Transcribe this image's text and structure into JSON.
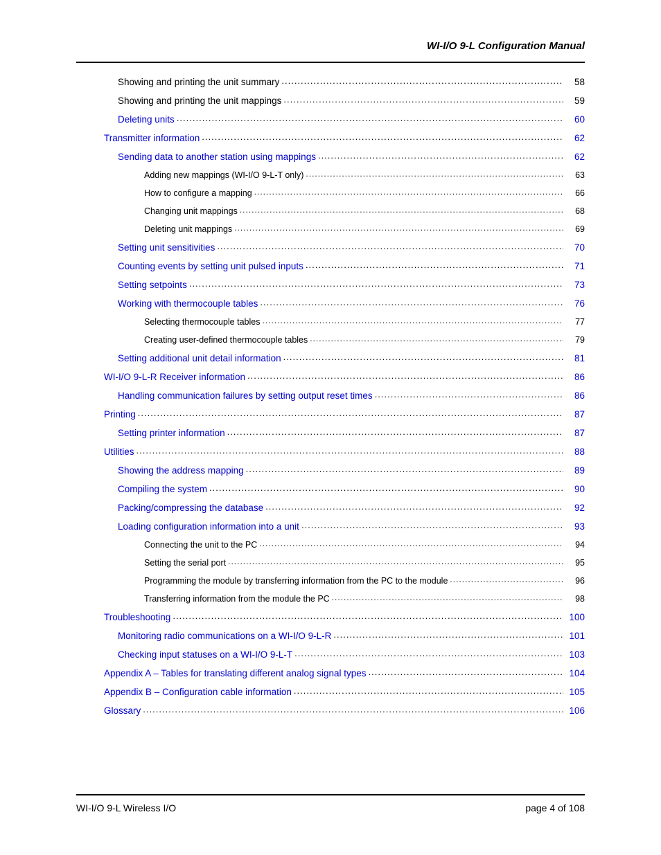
{
  "header": {
    "title": "WI-I/O 9-L Configuration Manual"
  },
  "colors": {
    "link": "#0000cc",
    "text": "#000000",
    "rule": "#000000",
    "background": "#ffffff"
  },
  "toc": [
    {
      "level": 1,
      "label": "Showing and printing the unit summary",
      "page": "58",
      "is_link": false
    },
    {
      "level": 1,
      "label": "Showing and printing the unit mappings",
      "page": "59",
      "is_link": false
    },
    {
      "level": 1,
      "label": "Deleting units",
      "page": "60",
      "is_link": true
    },
    {
      "level": 0,
      "label": "Transmitter information",
      "page": "62",
      "is_link": true
    },
    {
      "level": 1,
      "label": "Sending data to another station using mappings",
      "page": "62",
      "is_link": true
    },
    {
      "level": 2,
      "label": "Adding new mappings (WI-I/O 9-L-T only)",
      "page": "63",
      "is_link": false
    },
    {
      "level": 2,
      "label": "How to configure a mapping",
      "page": "66",
      "is_link": false
    },
    {
      "level": 2,
      "label": "Changing unit mappings",
      "page": "68",
      "is_link": false
    },
    {
      "level": 2,
      "label": "Deleting unit mappings",
      "page": "69",
      "is_link": false
    },
    {
      "level": 1,
      "label": "Setting unit sensitivities",
      "page": "70",
      "is_link": true
    },
    {
      "level": 1,
      "label": "Counting events by setting unit pulsed inputs",
      "page": "71",
      "is_link": true
    },
    {
      "level": 1,
      "label": "Setting setpoints",
      "page": "73",
      "is_link": true
    },
    {
      "level": 1,
      "label": "Working with thermocouple tables",
      "page": "76",
      "is_link": true
    },
    {
      "level": 2,
      "label": "Selecting thermocouple tables",
      "page": "77",
      "is_link": false
    },
    {
      "level": 2,
      "label": "Creating user-defined thermocouple tables",
      "page": "79",
      "is_link": false
    },
    {
      "level": 1,
      "label": "Setting additional unit detail information",
      "page": "81",
      "is_link": true
    },
    {
      "level": 0,
      "label": "WI-I/O 9-L-R Receiver information",
      "page": "86",
      "is_link": true
    },
    {
      "level": 1,
      "label": "Handling communication failures by setting output reset times",
      "page": "86",
      "is_link": true
    },
    {
      "level": 0,
      "label": "Printing",
      "page": "87",
      "is_link": true
    },
    {
      "level": 1,
      "label": "Setting printer information",
      "page": "87",
      "is_link": true
    },
    {
      "level": 0,
      "label": "Utilities",
      "page": "88",
      "is_link": true
    },
    {
      "level": 1,
      "label": "Showing the address mapping",
      "page": "89",
      "is_link": true
    },
    {
      "level": 1,
      "label": "Compiling the system",
      "page": "90",
      "is_link": true
    },
    {
      "level": 1,
      "label": "Packing/compressing the database",
      "page": "92",
      "is_link": true
    },
    {
      "level": 1,
      "label": "Loading configuration information into a unit",
      "page": "93",
      "is_link": true
    },
    {
      "level": 2,
      "label": "Connecting the unit to the PC",
      "page": "94",
      "is_link": false
    },
    {
      "level": 2,
      "label": "Setting the serial port",
      "page": "95",
      "is_link": false
    },
    {
      "level": 2,
      "label": "Programming the module by transferring information from the PC to the module",
      "page": "96",
      "is_link": false
    },
    {
      "level": 2,
      "label": "Transferring information from the module the PC",
      "page": "98",
      "is_link": false
    },
    {
      "level": 0,
      "label": "Troubleshooting",
      "page": "100",
      "is_link": true
    },
    {
      "level": 1,
      "label": "Monitoring radio communications on a WI-I/O 9-L-R",
      "page": "101",
      "is_link": true
    },
    {
      "level": 1,
      "label": "Checking input statuses on a WI-I/O 9-L-T",
      "page": "103",
      "is_link": true
    },
    {
      "level": 0,
      "label": "Appendix A – Tables for translating different analog signal types",
      "page": "104",
      "is_link": true
    },
    {
      "level": 0,
      "label": "Appendix B – Configuration cable information",
      "page": "105",
      "is_link": true
    },
    {
      "level": 0,
      "label": "Glossary",
      "page": "106",
      "is_link": true
    }
  ],
  "footer": {
    "left": "WI-I/O 9-L Wireless I/O",
    "page_prefix": "page",
    "page_current": "4",
    "page_of": "of",
    "page_total": "108"
  }
}
